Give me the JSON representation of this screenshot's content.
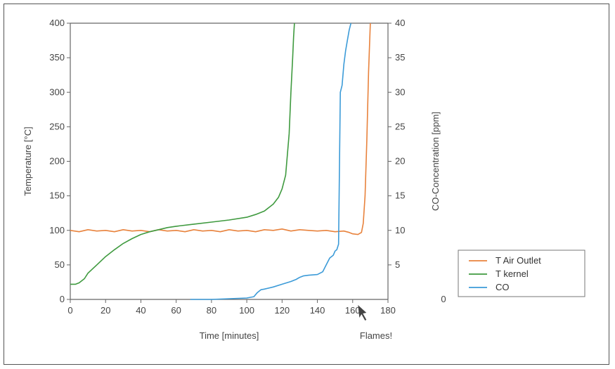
{
  "chart_data": {
    "type": "line",
    "xlabel": "Time [minutes]",
    "ylabel_left": "Temperature [°C]",
    "ylabel_right": "CO-Concentration [ppm]",
    "xlim": [
      0,
      180
    ],
    "ylim_left": [
      0,
      400
    ],
    "ylim_right": [
      0,
      40
    ],
    "x_ticks": [
      0,
      20,
      40,
      60,
      80,
      100,
      120,
      140,
      160,
      180
    ],
    "y_ticks_left": [
      0,
      50,
      100,
      150,
      200,
      250,
      300,
      350,
      400
    ],
    "y_ticks_right": [
      5,
      10,
      15,
      20,
      25,
      30,
      35,
      40
    ],
    "legend_zero_label": "0",
    "annotation": "Flames!",
    "legend_position": "right",
    "grid": false,
    "series": [
      {
        "name": "T Air Outlet",
        "axis": "left",
        "color": "#e8823c",
        "x": [
          0,
          5,
          10,
          15,
          20,
          25,
          30,
          35,
          40,
          45,
          50,
          55,
          60,
          65,
          70,
          75,
          80,
          85,
          90,
          95,
          100,
          105,
          110,
          115,
          120,
          125,
          130,
          135,
          140,
          145,
          150,
          155,
          158,
          160,
          163,
          165,
          166,
          167,
          168,
          169,
          170
        ],
        "y": [
          100,
          98,
          101,
          99,
          100,
          98,
          101,
          99,
          100,
          98,
          101,
          99,
          100,
          98,
          101,
          99,
          100,
          98,
          101,
          99,
          100,
          98,
          101,
          100,
          102,
          99,
          101,
          100,
          99,
          100,
          98,
          99,
          97,
          95,
          94,
          97,
          110,
          150,
          230,
          330,
          400
        ]
      },
      {
        "name": "T kernel",
        "axis": "left",
        "color": "#3f9a3f",
        "x": [
          0,
          3,
          5,
          8,
          10,
          15,
          20,
          25,
          30,
          35,
          40,
          45,
          50,
          55,
          60,
          70,
          80,
          90,
          100,
          105,
          110,
          115,
          118,
          120,
          122,
          124,
          125,
          126,
          126.5,
          127
        ],
        "y": [
          22,
          22,
          24,
          30,
          38,
          50,
          62,
          72,
          81,
          88,
          94,
          98,
          101,
          104,
          106,
          109,
          112,
          115,
          119,
          123,
          128,
          138,
          148,
          160,
          180,
          240,
          300,
          350,
          380,
          400
        ]
      },
      {
        "name": "CO",
        "axis": "right",
        "color": "#3c9bd8",
        "x": [
          68,
          70,
          80,
          90,
          100,
          104,
          106,
          108,
          110,
          115,
          120,
          125,
          128,
          130,
          132,
          135,
          140,
          143,
          145,
          147,
          149,
          150,
          151,
          152,
          153,
          154,
          155,
          156,
          157,
          158,
          159
        ],
        "y": [
          0,
          0,
          0,
          0.1,
          0.2,
          0.4,
          1,
          1.4,
          1.5,
          1.8,
          2.2,
          2.6,
          2.9,
          3.2,
          3.4,
          3.5,
          3.6,
          4,
          5,
          6,
          6.4,
          7,
          7.2,
          8,
          30,
          31,
          34,
          36,
          37.5,
          39,
          40
        ]
      }
    ]
  }
}
